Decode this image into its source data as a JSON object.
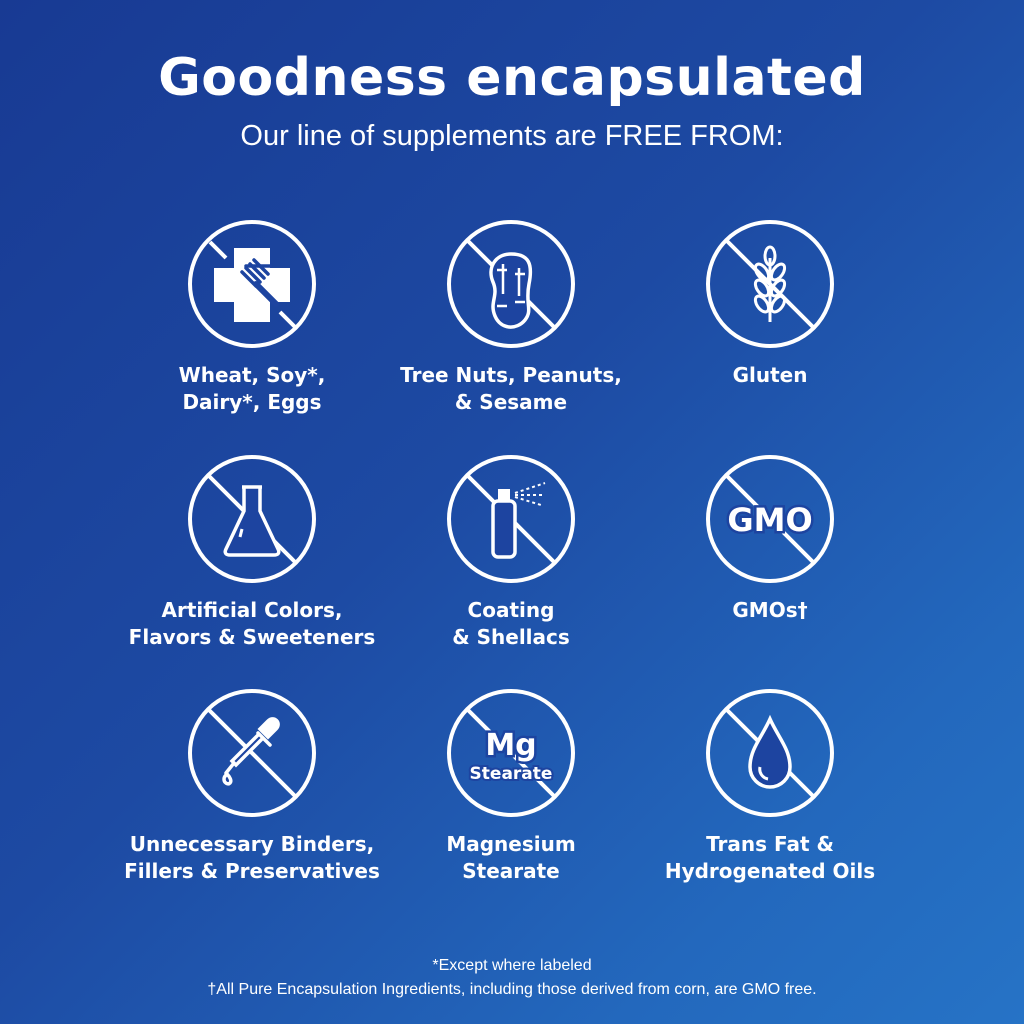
{
  "header": {
    "title": "Goodness encapsulated",
    "subtitle": "Our line of supplements are FREE FROM:"
  },
  "items": [
    {
      "label": "Wheat, Soy*,\nDairy*, Eggs",
      "icon": "allergen-cross-fork-icon"
    },
    {
      "label": "Tree Nuts, Peanuts,\n& Sesame",
      "icon": "peanut-icon"
    },
    {
      "label": "Gluten",
      "icon": "wheat-icon"
    },
    {
      "label": "Artificial Colors,\nFlavors & Sweeteners",
      "icon": "flask-icon"
    },
    {
      "label": "Coating\n& Shellacs",
      "icon": "spray-can-icon"
    },
    {
      "label": "GMOs†",
      "icon": "gmo-icon",
      "icon_text": "GMO"
    },
    {
      "label": "Unnecessary Binders,\nFillers & Preservatives",
      "icon": "dropper-icon"
    },
    {
      "label": "Magnesium\nStearate",
      "icon": "mg-stearate-icon",
      "icon_text": "Mg",
      "icon_subtext": "Stearate"
    },
    {
      "label": "Trans Fat &\nHydrogenated Oils",
      "icon": "oil-drop-icon"
    }
  ],
  "footnotes": [
    "*Except where labeled",
    "†All Pure Encapsulation Ingredients, including those derived from corn, are GMO free."
  ],
  "colors": {
    "background_start": "#183a93",
    "background_end": "#2673c6",
    "foreground": "#ffffff"
  }
}
